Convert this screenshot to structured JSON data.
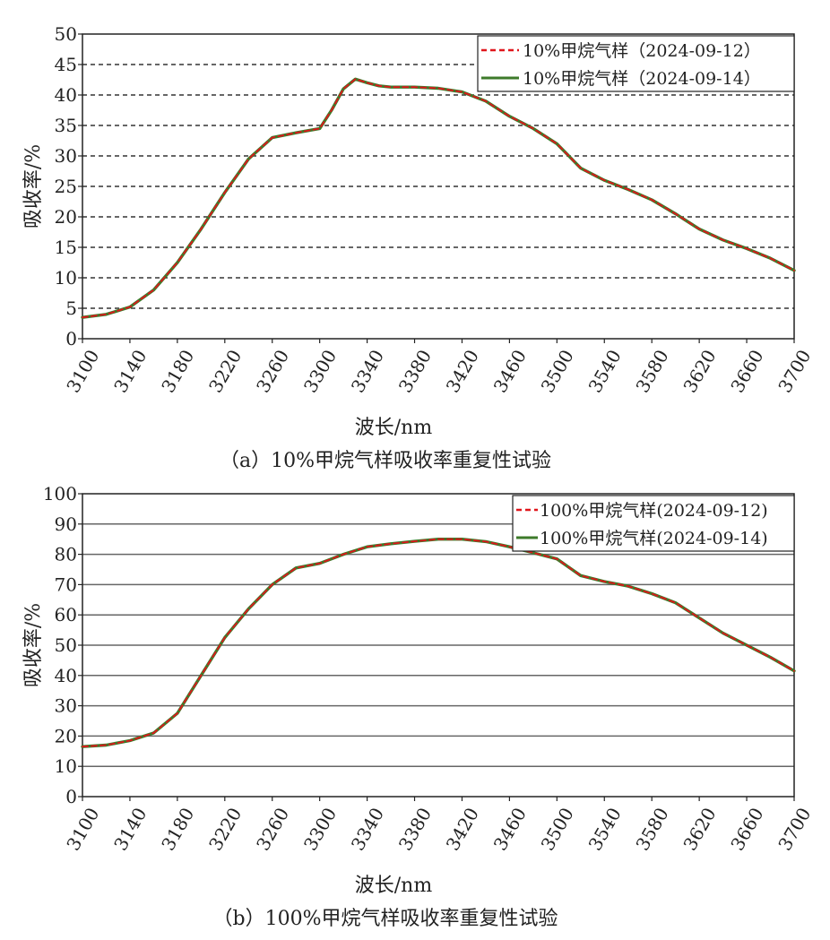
{
  "chart_data": [
    {
      "type": "line",
      "caption": "（a）10%甲烷气样吸收率重复性试验",
      "xlabel": "波长/nm",
      "ylabel": "吸收率/%",
      "xlim": [
        3100,
        3700
      ],
      "ylim": [
        0,
        50
      ],
      "xticks": [
        3100,
        3140,
        3180,
        3220,
        3260,
        3300,
        3340,
        3380,
        3420,
        3460,
        3500,
        3540,
        3580,
        3620,
        3660,
        3700
      ],
      "yticks": [
        0,
        5,
        10,
        15,
        20,
        25,
        30,
        35,
        40,
        45,
        50
      ],
      "grid": "horizontal-dashed",
      "legend_position": "top-right",
      "x": [
        3100,
        3120,
        3140,
        3160,
        3180,
        3200,
        3220,
        3240,
        3260,
        3280,
        3300,
        3310,
        3320,
        3330,
        3340,
        3350,
        3360,
        3380,
        3400,
        3420,
        3440,
        3460,
        3480,
        3500,
        3520,
        3540,
        3560,
        3580,
        3600,
        3620,
        3640,
        3660,
        3680,
        3700
      ],
      "series": [
        {
          "name": "10%甲烷气样（2024-09-12）",
          "color": "#e0161b",
          "dash": "6,4",
          "values": [
            3.5,
            4.0,
            5.2,
            8.0,
            12.5,
            18.0,
            24.0,
            29.5,
            33.0,
            33.8,
            34.5,
            37.5,
            41.0,
            42.6,
            42.0,
            41.5,
            41.3,
            41.3,
            41.1,
            40.5,
            39.0,
            36.5,
            34.5,
            32.0,
            28.0,
            26.0,
            24.5,
            22.8,
            20.5,
            18.0,
            16.2,
            14.8,
            13.2,
            11.2
          ]
        },
        {
          "name": "10%甲烷气样（2024-09-14）",
          "color": "#3d7a2a",
          "dash": "",
          "values": [
            3.5,
            4.0,
            5.2,
            8.0,
            12.5,
            18.0,
            24.0,
            29.5,
            33.0,
            33.8,
            34.5,
            37.5,
            41.0,
            42.6,
            42.0,
            41.5,
            41.3,
            41.3,
            41.1,
            40.5,
            39.0,
            36.5,
            34.5,
            32.0,
            28.0,
            26.0,
            24.5,
            22.8,
            20.5,
            18.0,
            16.2,
            14.8,
            13.2,
            11.2
          ]
        }
      ]
    },
    {
      "type": "line",
      "caption": "（b）100%甲烷气样吸收率重复性试验",
      "xlabel": "波长/nm",
      "ylabel": "吸收率/%",
      "xlim": [
        3100,
        3700
      ],
      "ylim": [
        0,
        100
      ],
      "xticks": [
        3100,
        3140,
        3180,
        3220,
        3260,
        3300,
        3340,
        3380,
        3420,
        3460,
        3500,
        3540,
        3580,
        3620,
        3660,
        3700
      ],
      "yticks": [
        0,
        10,
        20,
        30,
        40,
        50,
        60,
        70,
        80,
        90,
        100
      ],
      "grid": "horizontal-solid",
      "legend_position": "top-right",
      "x": [
        3100,
        3120,
        3140,
        3160,
        3180,
        3200,
        3220,
        3240,
        3260,
        3280,
        3300,
        3320,
        3340,
        3360,
        3380,
        3400,
        3420,
        3440,
        3460,
        3480,
        3500,
        3520,
        3540,
        3560,
        3580,
        3600,
        3620,
        3640,
        3660,
        3680,
        3700
      ],
      "series": [
        {
          "name": "100%甲烷气样(2024-09-12)",
          "color": "#e0161b",
          "dash": "6,4",
          "values": [
            16.5,
            17.0,
            18.5,
            21.0,
            27.5,
            40.0,
            52.5,
            62.0,
            70.0,
            75.5,
            77.0,
            80.0,
            82.5,
            83.5,
            84.3,
            85.0,
            85.0,
            84.2,
            82.5,
            80.5,
            78.5,
            73.0,
            71.0,
            69.5,
            67.0,
            64.0,
            59.0,
            54.0,
            50.0,
            46.0,
            41.5
          ]
        },
        {
          "name": "100%甲烷气样(2024-09-14)",
          "color": "#3d7a2a",
          "dash": "",
          "values": [
            16.5,
            17.0,
            18.5,
            21.0,
            27.5,
            40.0,
            52.5,
            62.0,
            70.0,
            75.5,
            77.0,
            80.0,
            82.5,
            83.5,
            84.3,
            85.0,
            85.0,
            84.2,
            82.5,
            80.5,
            78.5,
            73.0,
            71.0,
            69.5,
            67.0,
            64.0,
            59.0,
            54.0,
            50.0,
            46.0,
            41.5
          ]
        }
      ]
    }
  ]
}
